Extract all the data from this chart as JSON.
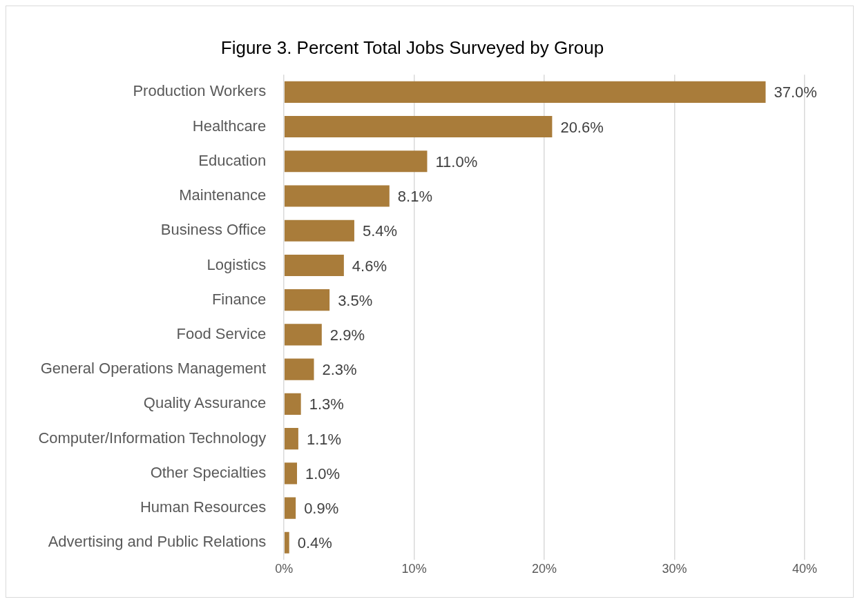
{
  "chart_data": {
    "type": "bar",
    "orientation": "horizontal",
    "title": "Figure 3. Percent Total Jobs Surveyed by Group",
    "categories": [
      "Production Workers",
      "Healthcare",
      "Education",
      "Maintenance",
      "Business Office",
      "Logistics",
      "Finance",
      "Food Service",
      "General Operations Management",
      "Quality Assurance",
      "Computer/Information Technology",
      "Other Specialties",
      "Human Resources",
      "Advertising and Public Relations"
    ],
    "values": [
      37.0,
      20.6,
      11.0,
      8.1,
      5.4,
      4.6,
      3.5,
      2.9,
      2.3,
      1.3,
      1.1,
      1.0,
      0.9,
      0.4
    ],
    "value_labels": [
      "37.0%",
      "20.6%",
      "11.0%",
      "8.1%",
      "5.4%",
      "4.6%",
      "3.5%",
      "2.9%",
      "2.3%",
      "1.3%",
      "1.1%",
      "1.0%",
      "0.9%",
      "0.4%"
    ],
    "color": "#a97c3a",
    "xlim": [
      0,
      40
    ],
    "xticks": [
      {
        "value": 0,
        "label": "0%"
      },
      {
        "value": 10,
        "label": "10%"
      },
      {
        "value": 20,
        "label": "20%"
      },
      {
        "value": 30,
        "label": "30%"
      },
      {
        "value": 40,
        "label": "40%"
      }
    ],
    "grid": "x"
  }
}
